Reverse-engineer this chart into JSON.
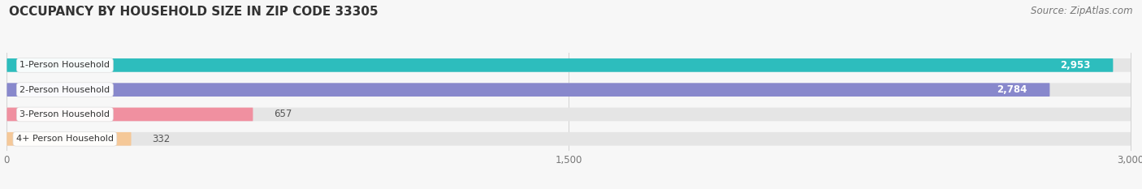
{
  "title": "OCCUPANCY BY HOUSEHOLD SIZE IN ZIP CODE 33305",
  "source": "Source: ZipAtlas.com",
  "categories": [
    "1-Person Household",
    "2-Person Household",
    "3-Person Household",
    "4+ Person Household"
  ],
  "values": [
    2953,
    2784,
    657,
    332
  ],
  "bar_colors": [
    "#2dbdbd",
    "#8888cc",
    "#f090a0",
    "#f5c898"
  ],
  "bar_labels": [
    "2,953",
    "2,784",
    "657",
    "332"
  ],
  "label_inside": [
    true,
    true,
    false,
    false
  ],
  "xlim": [
    0,
    3000
  ],
  "xticks": [
    0,
    1500,
    3000
  ],
  "background_color": "#f7f7f7",
  "bar_bg_color": "#e5e5e5",
  "title_fontsize": 11,
  "source_fontsize": 8.5,
  "bar_height": 0.55,
  "bar_spacing": 1.0
}
